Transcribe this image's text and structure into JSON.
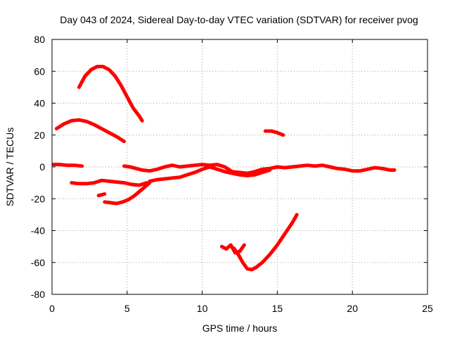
{
  "chart_data": {
    "type": "line",
    "title": "Day 043 of 2024, Sidereal Day-to-day VTEC variation (SDTVAR) for receiver pvog",
    "xlabel": "GPS time / hours",
    "ylabel": "SDTVAR / TECUs",
    "xlim": [
      0,
      25
    ],
    "ylim": [
      -80,
      80
    ],
    "xticks": [
      0,
      5,
      10,
      15,
      20,
      25
    ],
    "yticks": [
      -80,
      -60,
      -40,
      -20,
      0,
      20,
      40,
      60,
      80
    ],
    "xtick_labels": [
      "0",
      "5",
      "10",
      "15",
      "20",
      "25"
    ],
    "ytick_labels": [
      "-80",
      "-60",
      "-40",
      "-20",
      "0",
      "20",
      "40",
      "60",
      "80"
    ],
    "grid": true,
    "legend": "none",
    "series_color": "#ff0000",
    "series": [
      {
        "name": "arc-1",
        "x": [
          1.8,
          2.2,
          2.6,
          3.0,
          3.4,
          3.8,
          4.2,
          4.6,
          5.0,
          5.4,
          5.8,
          6.0
        ],
        "y": [
          50,
          57,
          61,
          63,
          63,
          61,
          57,
          51,
          44,
          37,
          32,
          29
        ]
      },
      {
        "name": "arc-2",
        "x": [
          0.3,
          0.8,
          1.3,
          1.8,
          2.3,
          2.8,
          3.3,
          3.8,
          4.3,
          4.8
        ],
        "y": [
          24,
          27,
          29,
          29.5,
          28.5,
          26.5,
          24,
          21.5,
          19,
          16
        ]
      },
      {
        "name": "arc-3",
        "x": [
          0.1,
          0.5,
          1.0,
          1.5,
          2.0
        ],
        "y": [
          1.5,
          1.5,
          1,
          1,
          0.5
        ]
      },
      {
        "name": "arc-4",
        "x": [
          1.3,
          1.8,
          2.3,
          2.8,
          3.3,
          3.8,
          4.3,
          4.8,
          5.3,
          5.8,
          6.3
        ],
        "y": [
          -10,
          -10.5,
          -10.5,
          -10,
          -8.5,
          -9,
          -9.5,
          -10,
          -11,
          -11.5,
          -10
        ]
      },
      {
        "name": "arc-5",
        "x": [
          3.1,
          3.5
        ],
        "y": [
          -18,
          -17
        ]
      },
      {
        "name": "arc-6",
        "x": [
          3.5,
          3.9,
          4.3,
          4.7,
          5.1,
          5.5,
          6.0,
          6.5
        ],
        "y": [
          -22,
          -22.5,
          -23,
          -22,
          -20.5,
          -18,
          -14,
          -10
        ]
      },
      {
        "name": "arc-7",
        "x": [
          4.8,
          5.2,
          5.6,
          6.0,
          6.5,
          7.0,
          7.5,
          8.0,
          8.5,
          9.0,
          9.5,
          10.0,
          10.5,
          11.0,
          11.5,
          12.0,
          12.5,
          13.0,
          13.5,
          14.0,
          14.5,
          15.0,
          15.5,
          16.0,
          16.5,
          17.0,
          17.5,
          18.0,
          18.5,
          19.0,
          19.5,
          20.0,
          20.5,
          21.0,
          21.5,
          22.0,
          22.5,
          22.8
        ],
        "y": [
          0.5,
          0,
          -1,
          -2,
          -2.5,
          -1.5,
          0,
          1,
          0,
          0.5,
          1,
          1.5,
          1,
          1.5,
          0,
          -3,
          -3.5,
          -4,
          -3,
          -1.5,
          -1,
          0,
          -0.5,
          0,
          0.5,
          1,
          0.5,
          1,
          0,
          -1,
          -1.5,
          -2.5,
          -2.5,
          -1.5,
          -0.5,
          -1,
          -2,
          -2
        ]
      },
      {
        "name": "arc-8",
        "x": [
          6.5,
          7.0,
          7.5,
          8.0,
          8.5,
          9.0,
          9.5,
          10.0,
          10.5,
          11.0,
          11.5,
          12.0,
          12.5,
          13.0,
          13.5,
          14.0,
          14.5
        ],
        "y": [
          -9,
          -8,
          -7.5,
          -7,
          -6.5,
          -5,
          -3.5,
          -1.5,
          0,
          -1.5,
          -3,
          -4,
          -5,
          -5.5,
          -5,
          -3.5,
          -2
        ]
      },
      {
        "name": "arc-9",
        "x": [
          14.2,
          14.6,
          15.0,
          15.4
        ],
        "y": [
          22.5,
          22.5,
          21.5,
          20
        ]
      },
      {
        "name": "arc-10",
        "x": [
          11.3,
          11.6,
          11.9,
          12.2,
          12.5,
          12.8
        ],
        "y": [
          -50,
          -51.5,
          -49,
          -54,
          -53,
          -49
        ]
      },
      {
        "name": "arc-11",
        "x": [
          12.1,
          12.4,
          12.7,
          13.0,
          13.3,
          13.6,
          14.0,
          14.5,
          15.0,
          15.5,
          16.0,
          16.3
        ],
        "y": [
          -51,
          -55,
          -60,
          -64,
          -64.5,
          -63,
          -60,
          -55,
          -49,
          -42,
          -35,
          -30
        ]
      }
    ]
  }
}
